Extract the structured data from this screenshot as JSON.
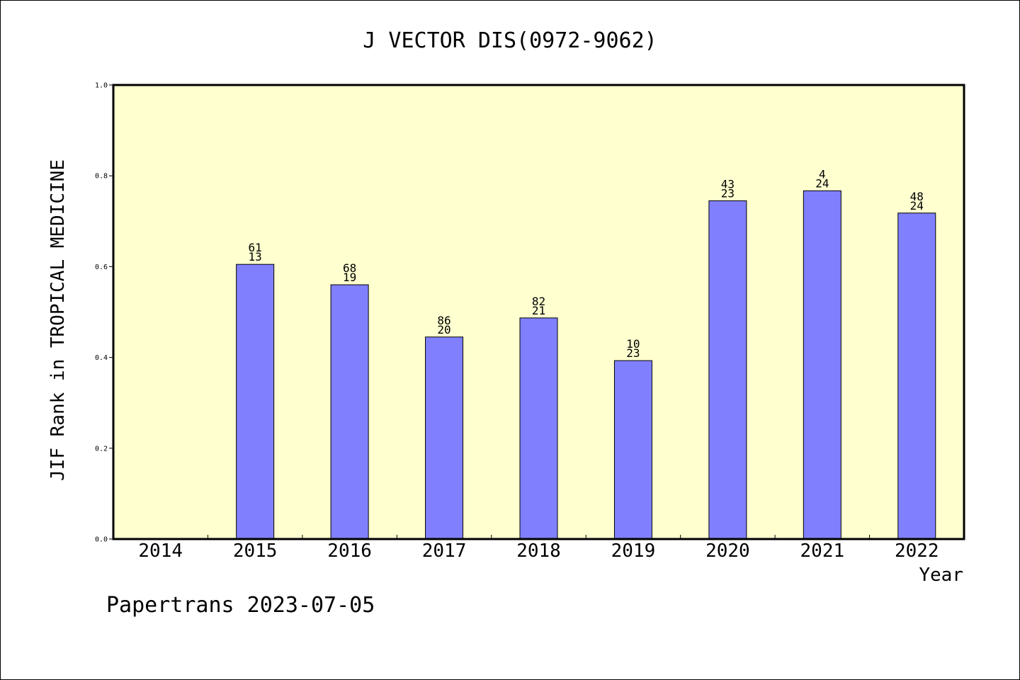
{
  "chart_data": {
    "type": "bar",
    "title": "J VECTOR DIS(0972-9062)",
    "xlabel": "Year",
    "ylabel": "JIF Rank in TROPICAL MEDICINE",
    "ylim": [
      0,
      1.0
    ],
    "yticks": [
      "0.0",
      "0.2",
      "0.4",
      "0.6",
      "0.8",
      "1.0"
    ],
    "yticks_values": [
      0.0,
      0.2,
      0.4,
      0.6,
      0.8,
      1.0
    ],
    "categories": [
      "2014",
      "2015",
      "2016",
      "2017",
      "2018",
      "2019",
      "2020",
      "2021",
      "2022"
    ],
    "values": [
      null,
      0.605,
      0.56,
      0.445,
      0.487,
      0.393,
      0.745,
      0.767,
      0.718
    ],
    "labels_top": [
      "",
      "61",
      "68",
      "86",
      "82",
      "10",
      "43",
      "4",
      "48"
    ],
    "labels_bottom": [
      "",
      "13",
      "19",
      "20",
      "21",
      "23",
      "23",
      "24",
      "24"
    ],
    "grid": false,
    "bar_color": "#8080ff",
    "plot_background": "#ffffd0"
  },
  "footer": "Papertrans 2023-07-05"
}
